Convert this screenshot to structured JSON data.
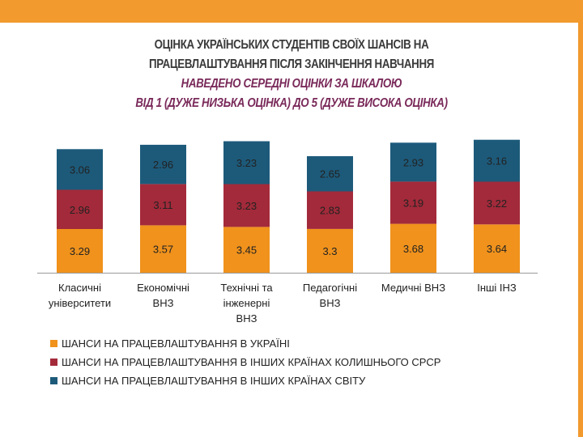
{
  "title": {
    "line1": "ОЦІНКА УКРАЇНСЬКИХ СТУДЕНТІВ СВОЇХ ШАНСІВ НА",
    "line2": "ПРАЦЕВЛАШТУВАННЯ ПІСЛЯ ЗАКІНЧЕННЯ НАВЧАННЯ",
    "line3": "НАВЕДЕНО СЕРЕДНІ ОЦІНКИ ЗА ШКАЛОЮ",
    "line4": "ВІД 1 (ДУЖЕ НИЗЬКА ОЦІНКА) ДО 5 (ДУЖЕ ВИСОКА ОЦІНКА)"
  },
  "colors": {
    "accent": "#f29a2e",
    "subtitle": "#7a2a5a"
  },
  "chart_data": {
    "type": "bar",
    "stacked": true,
    "categories": [
      [
        "Класичні",
        "університети"
      ],
      [
        "Економічні",
        "ВНЗ"
      ],
      [
        "Технічні та",
        "інженерні",
        "ВНЗ"
      ],
      [
        "Педагогічні",
        "ВНЗ"
      ],
      [
        "Медичні ВНЗ"
      ],
      [
        "Інші ІНЗ"
      ]
    ],
    "series": [
      {
        "name": "ШАНСИ НА ПРАЦЕВЛАШТУВАННЯ В УКРАЇНІ",
        "color": "#f0921c",
        "values": [
          3.29,
          3.57,
          3.45,
          3.3,
          3.68,
          3.64
        ],
        "labels": [
          "3.29",
          "3.57",
          "3.45",
          "3.3",
          "3.68",
          "3.64"
        ]
      },
      {
        "name": "ШАНСИ НА ПРАЦЕВЛАШТУВАННЯ В ІНШИХ КРАЇНАХ КОЛИШНЬОГО СРСР",
        "color": "#a32a3a",
        "values": [
          2.96,
          3.11,
          3.23,
          2.83,
          3.19,
          3.22
        ],
        "labels": [
          "2.96",
          "3.11",
          "3.23",
          "2.83",
          "3.19",
          "3.22"
        ]
      },
      {
        "name": "ШАНСИ НА ПРАЦЕВЛАШТУВАННЯ В ІНШИХ КРАЇНАХ СВІТУ",
        "color": "#1d5a7a",
        "values": [
          3.06,
          2.96,
          3.23,
          2.65,
          2.93,
          3.16
        ],
        "labels": [
          "3.06",
          "2.96",
          "3.23",
          "2.65",
          "2.93",
          "3.16"
        ]
      }
    ],
    "legend_position": "bottom",
    "grid": false
  }
}
